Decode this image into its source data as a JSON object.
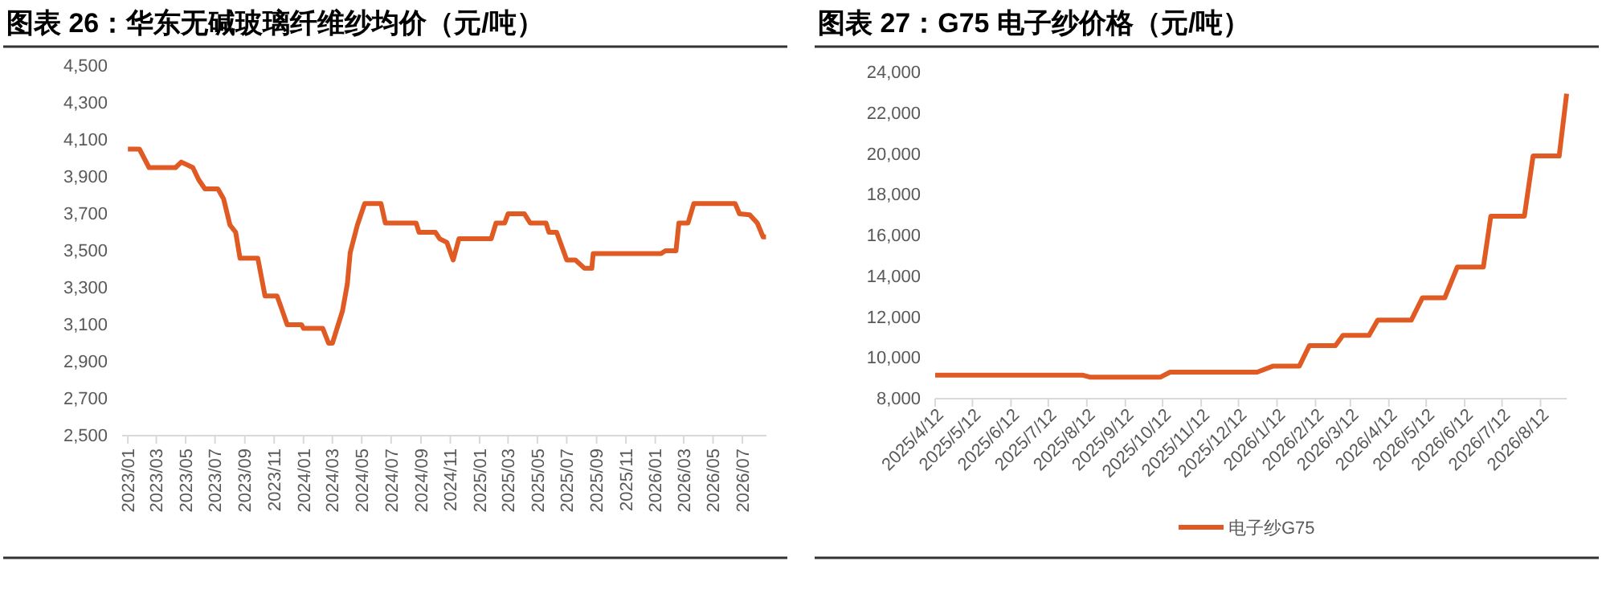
{
  "chart_data": [
    {
      "type": "line",
      "title": "图表 26：华东无碱玻璃纤维纱均价（元/吨）",
      "legend": false,
      "grid": false,
      "x": [
        "2023-01-01",
        "2023-01-25",
        "2023-02-14",
        "2023-04-10",
        "2023-04-22",
        "2023-05-16",
        "2023-05-28",
        "2023-06-10",
        "2023-07-07",
        "2023-07-19",
        "2023-08-01",
        "2023-08-13",
        "2023-08-22",
        "2023-09-28",
        "2023-10-13",
        "2023-11-07",
        "2023-11-16",
        "2023-11-28",
        "2023-12-28",
        "2024-01-01",
        "2024-02-10",
        "2024-02-22",
        "2024-03-01",
        "2024-03-22",
        "2024-04-01",
        "2024-04-07",
        "2024-04-22",
        "2024-05-07",
        "2024-06-10",
        "2024-06-19",
        "2024-08-22",
        "2024-08-28",
        "2024-10-01",
        "2024-10-10",
        "2024-10-25",
        "2024-11-07",
        "2024-11-19",
        "2025-01-25",
        "2025-02-04",
        "2025-02-22",
        "2025-03-01",
        "2025-04-04",
        "2025-04-16",
        "2025-05-19",
        "2025-05-25",
        "2025-06-10",
        "2025-07-01",
        "2025-07-19",
        "2025-08-07",
        "2025-08-22",
        "2025-08-25",
        "2026-01-13",
        "2026-01-22",
        "2026-02-13",
        "2026-02-19",
        "2026-03-10",
        "2026-03-22",
        "2026-06-16",
        "2026-06-25",
        "2026-07-16",
        "2026-08-01",
        "2026-08-13",
        "2026-08-19"
      ],
      "series": [
        {
          "color": "#e05a24",
          "values": [
            4050,
            4050,
            3950,
            3950,
            3980,
            3950,
            3885,
            3835,
            3835,
            3780,
            3640,
            3600,
            3460,
            3460,
            3255,
            3255,
            3190,
            3100,
            3100,
            3080,
            3080,
            3000,
            3000,
            3175,
            3320,
            3490,
            3640,
            3755,
            3755,
            3650,
            3650,
            3600,
            3600,
            3565,
            3545,
            3450,
            3565,
            3565,
            3650,
            3650,
            3700,
            3700,
            3650,
            3650,
            3600,
            3600,
            3450,
            3450,
            3405,
            3405,
            3485,
            3485,
            3500,
            3500,
            3650,
            3650,
            3755,
            3755,
            3700,
            3695,
            3650,
            3575,
            3575
          ]
        }
      ],
      "xlim": [
        "2022-12-20",
        "2026-08-20"
      ],
      "xticks": [
        {
          "value": "2023-01",
          "label": "2023/01"
        },
        {
          "value": "2023-03",
          "label": "2023/03"
        },
        {
          "value": "2023-05",
          "label": "2023/05"
        },
        {
          "value": "2023-07",
          "label": "2023/07"
        },
        {
          "value": "2023-09",
          "label": "2023/09"
        },
        {
          "value": "2023-11",
          "label": "2023/11"
        },
        {
          "value": "2024-01",
          "label": "2024/01"
        },
        {
          "value": "2024-03",
          "label": "2024/03"
        },
        {
          "value": "2024-05",
          "label": "2024/05"
        },
        {
          "value": "2024-07",
          "label": "2024/07"
        },
        {
          "value": "2024-09",
          "label": "2024/09"
        },
        {
          "value": "2024-11",
          "label": "2024/11"
        },
        {
          "value": "2025-01",
          "label": "2025/01"
        },
        {
          "value": "2025-03",
          "label": "2025/03"
        },
        {
          "value": "2025-05",
          "label": "2025/05"
        },
        {
          "value": "2025-07",
          "label": "2025/07"
        },
        {
          "value": "2025-09",
          "label": "2025/09"
        },
        {
          "value": "2025-11",
          "label": "2025/11"
        },
        {
          "value": "2026-01",
          "label": "2026/01"
        },
        {
          "value": "2026-03",
          "label": "2026/03"
        },
        {
          "value": "2026-05",
          "label": "2026/05"
        },
        {
          "value": "2026-07",
          "label": "2026/07"
        }
      ],
      "ylim": [
        2500,
        4500
      ],
      "yticks": [
        {
          "value": 2500,
          "label": "2,500"
        },
        {
          "value": 2700,
          "label": "2,700"
        },
        {
          "value": 2900,
          "label": "2,900"
        },
        {
          "value": 3100,
          "label": "3,100"
        },
        {
          "value": 3300,
          "label": "3,300"
        },
        {
          "value": 3500,
          "label": "3,500"
        },
        {
          "value": 3700,
          "label": "3,700"
        },
        {
          "value": 3900,
          "label": "3,900"
        },
        {
          "value": 4100,
          "label": "4,100"
        },
        {
          "value": 4300,
          "label": "4,300"
        },
        {
          "value": 4500,
          "label": "4,500"
        }
      ]
    },
    {
      "type": "line",
      "title": "图表 27：G75 电子纱价格（元/吨）",
      "legend": "bottom",
      "grid": false,
      "x": [
        "2025-04-12",
        "2025-08-09",
        "2025-08-15",
        "2025-10-10",
        "2025-10-18",
        "2025-12-27",
        "2026-01-09",
        "2026-01-30",
        "2026-02-07",
        "2026-02-28",
        "2026-03-06",
        "2026-03-27",
        "2026-04-03",
        "2026-04-30",
        "2026-05-09",
        "2026-05-27",
        "2026-06-06",
        "2026-06-27",
        "2026-07-03",
        "2026-07-30",
        "2026-08-06",
        "2026-08-27",
        "2026-09-02"
      ],
      "series": [
        {
          "name": "电子纱G75",
          "color": "#e05a24",
          "values": [
            9150,
            9150,
            9050,
            9050,
            9300,
            9300,
            9600,
            9600,
            10600,
            10600,
            11100,
            11100,
            11850,
            11850,
            12950,
            12950,
            14450,
            14450,
            16950,
            16950,
            19900,
            19900,
            22950
          ]
        }
      ],
      "xlim": [
        "2025-04-12",
        "2026-09-02"
      ],
      "xticks": [
        {
          "value": "2025-04-12",
          "label": "2025/4/12"
        },
        {
          "value": "2025-05-12",
          "label": "2025/5/12"
        },
        {
          "value": "2025-06-12",
          "label": "2025/6/12"
        },
        {
          "value": "2025-07-12",
          "label": "2025/7/12"
        },
        {
          "value": "2025-08-12",
          "label": "2025/8/12"
        },
        {
          "value": "2025-09-12",
          "label": "2025/9/12"
        },
        {
          "value": "2025-10-12",
          "label": "2025/10/12"
        },
        {
          "value": "2025-11-12",
          "label": "2025/11/12"
        },
        {
          "value": "2025-12-12",
          "label": "2025/12/12"
        },
        {
          "value": "2026-01-12",
          "label": "2026/1/12"
        },
        {
          "value": "2026-02-12",
          "label": "2026/2/12"
        },
        {
          "value": "2026-03-12",
          "label": "2026/3/12"
        },
        {
          "value": "2026-04-12",
          "label": "2026/4/12"
        },
        {
          "value": "2026-05-12",
          "label": "2026/5/12"
        },
        {
          "value": "2026-06-12",
          "label": "2026/6/12"
        },
        {
          "value": "2026-07-12",
          "label": "2026/7/12"
        },
        {
          "value": "2026-08-12",
          "label": "2026/8/12"
        }
      ],
      "ylim": [
        8000,
        24000
      ],
      "yticks": [
        {
          "value": 8000,
          "label": "8,000"
        },
        {
          "value": 10000,
          "label": "10,000"
        },
        {
          "value": 12000,
          "label": "12,000"
        },
        {
          "value": 14000,
          "label": "14,000"
        },
        {
          "value": 16000,
          "label": "16,000"
        },
        {
          "value": 18000,
          "label": "18,000"
        },
        {
          "value": 20000,
          "label": "20,000"
        },
        {
          "value": 22000,
          "label": "22,000"
        },
        {
          "value": 24000,
          "label": "24,000"
        }
      ]
    }
  ]
}
